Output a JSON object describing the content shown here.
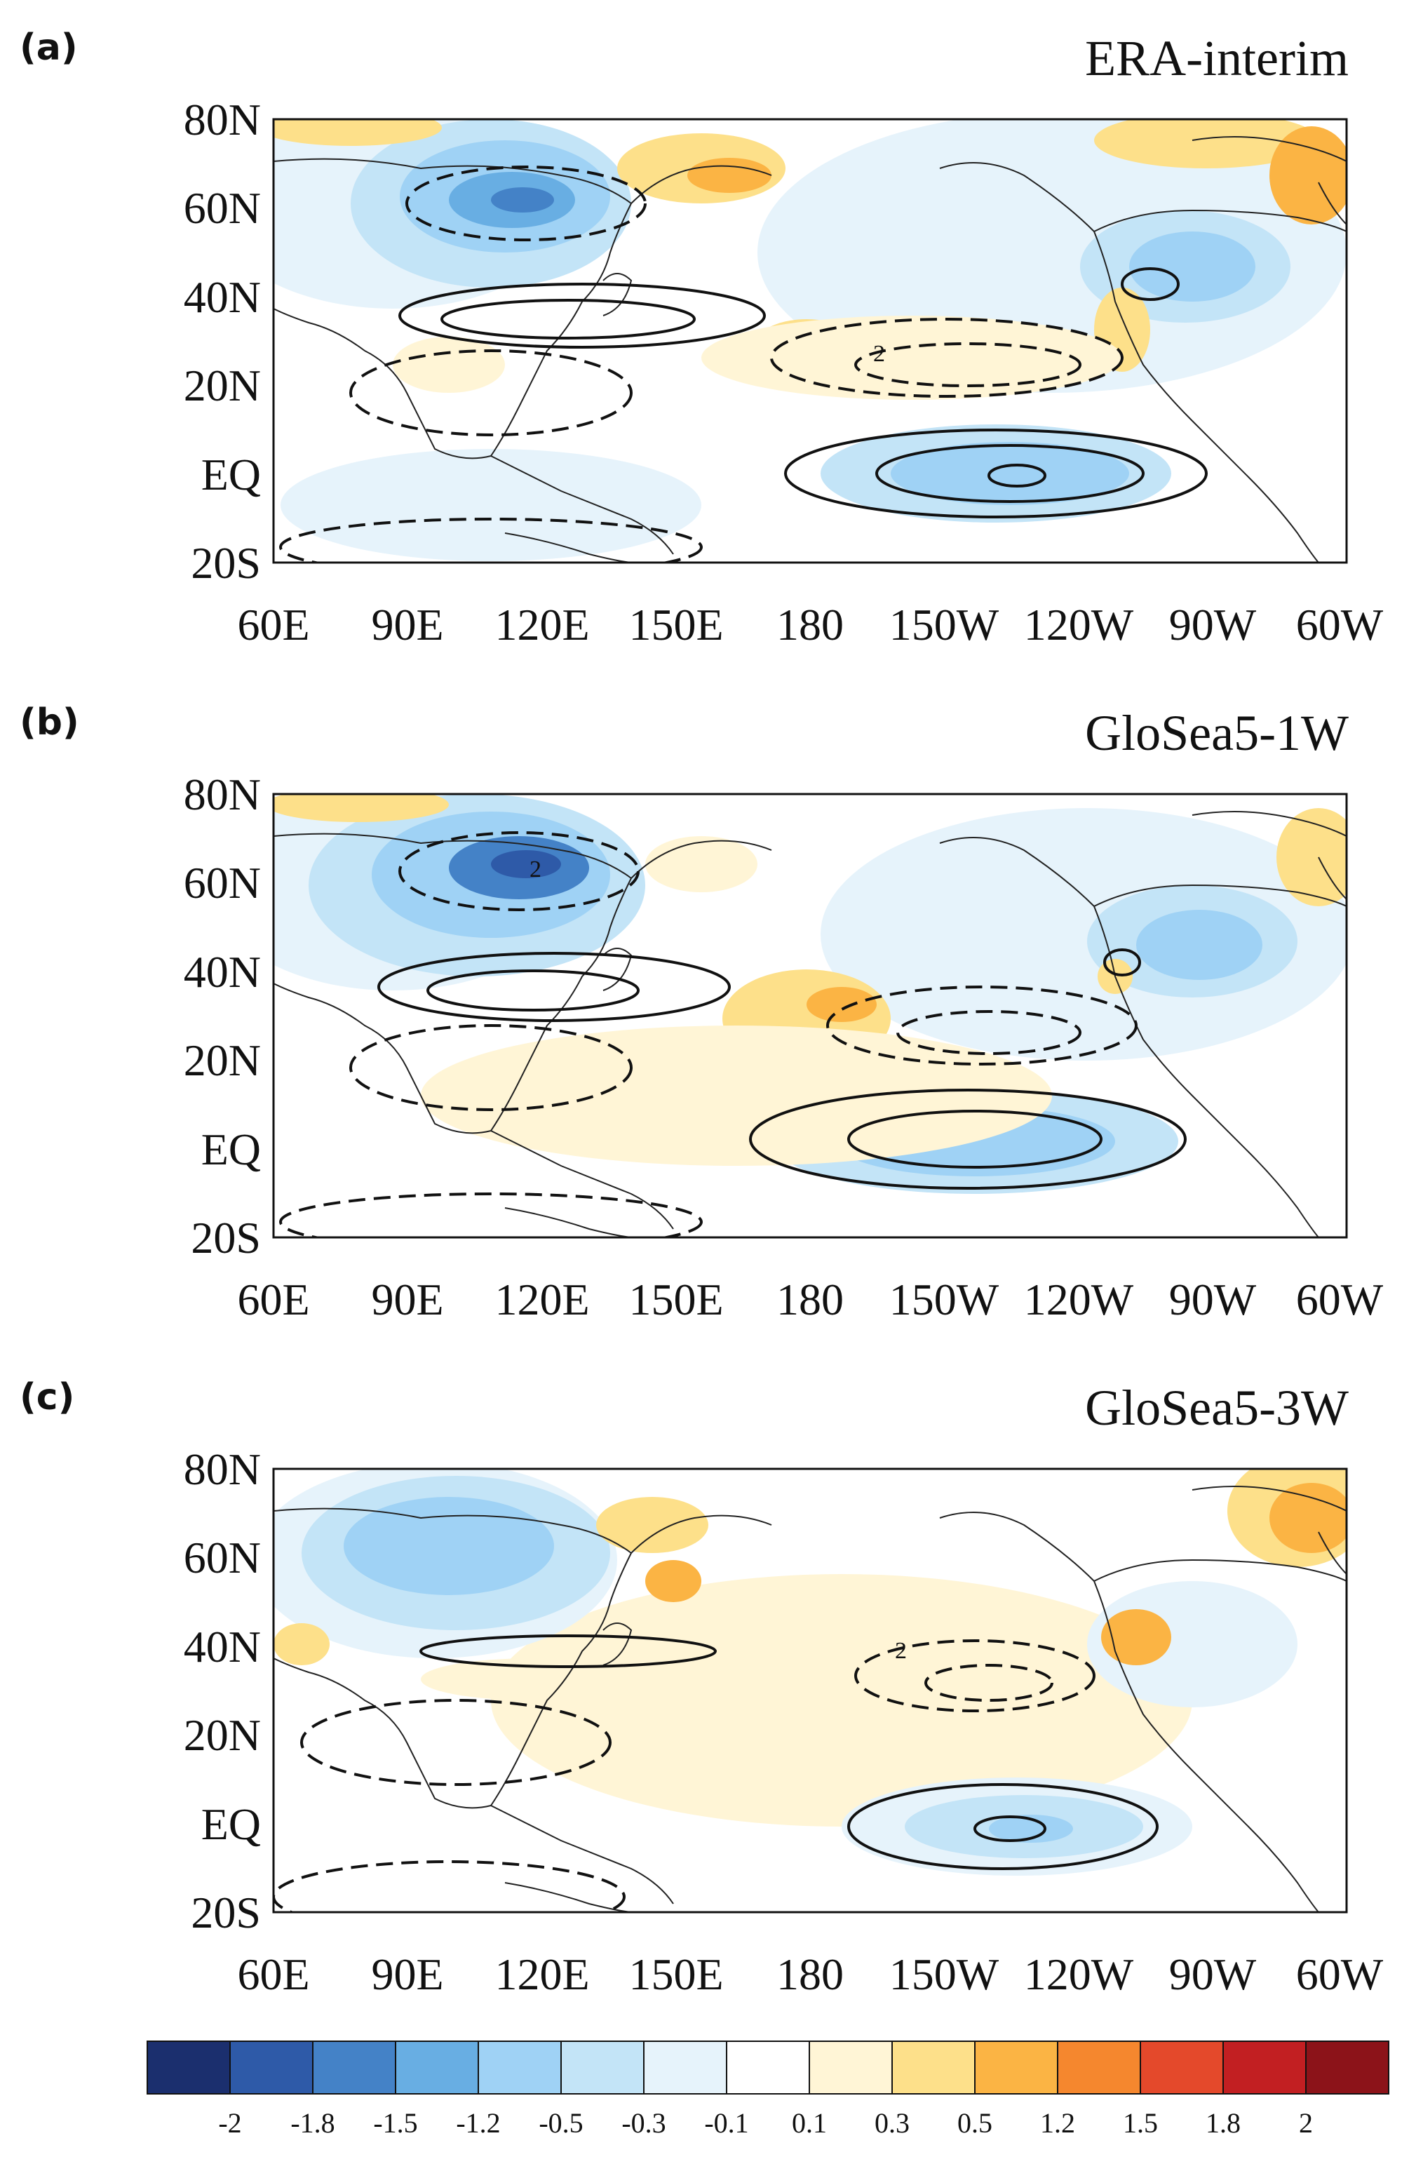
{
  "panels": [
    {
      "label": "(a)",
      "title": "ERA-interim"
    },
    {
      "label": "(b)",
      "title": "GloSea5-1W"
    },
    {
      "label": "(c)",
      "title": "GloSea5-3W"
    }
  ],
  "axes": {
    "lat_labels": [
      "80N",
      "60N",
      "40N",
      "20N",
      "EQ",
      "20S"
    ],
    "lon_labels": [
      "60E",
      "90E",
      "120E",
      "150E",
      "180",
      "150W",
      "120W",
      "90W",
      "60W"
    ]
  },
  "contour_label": "2",
  "colorbar": {
    "ticks": [
      "-2",
      "-1.8",
      "-1.5",
      "-1.2",
      "-0.5",
      "-0.3",
      "-0.1",
      "0.1",
      "0.3",
      "0.5",
      "1.2",
      "1.5",
      "1.8",
      "2"
    ],
    "colors": [
      "#1b2f6e",
      "#2e5aa8",
      "#4482c7",
      "#68aee3",
      "#9fd2f5",
      "#c3e4f7",
      "#e6f3fb",
      "#ffffff",
      "#fff5d6",
      "#fde08a",
      "#fbb444",
      "#f5872e",
      "#e4492b",
      "#c21f22",
      "#8c1319"
    ]
  },
  "colors": {
    "neg_strong": "#2e5aa8",
    "neg_mid": "#68aee3",
    "neg_light": "#c3e4f7",
    "neg_faint": "#e6f3fb",
    "pos_faint": "#fff5d6",
    "pos_light": "#fde08a",
    "pos_mid": "#fbb444"
  }
}
